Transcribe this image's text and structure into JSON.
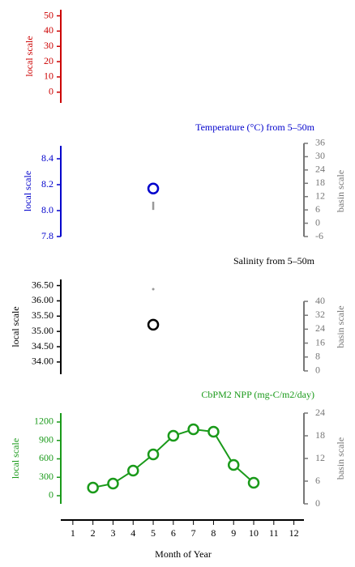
{
  "chart_data": [
    {
      "type": "line",
      "ylabel": "local scale",
      "color": "#cc0000",
      "ylim": [
        -7,
        54
      ],
      "yticks": [
        0,
        10,
        20,
        30,
        40,
        50
      ]
    },
    {
      "type": "line",
      "title": "Temperature (°C) from 5–50m",
      "ylabel": "local scale",
      "y2label": "basin scale",
      "color": "#0000cc",
      "ylim": [
        7.8,
        8.5
      ],
      "yticks": [
        7.8,
        {
          "value": 8,
          "label": "8.0"
        },
        8.2,
        8.4
      ],
      "y2lim": [
        -6,
        34.9
      ],
      "y2ticks": [
        -6,
        0,
        6,
        12,
        18,
        24,
        30,
        36
      ],
      "series": [
        {
          "color": "#0000cc",
          "x": [
            5
          ],
          "values": [
            8.17
          ]
        },
        {
          "color": "#999999",
          "axis": "y2",
          "x": [
            5
          ],
          "low": [
            6
          ],
          "high": [
            9.7
          ]
        }
      ]
    },
    {
      "type": "line",
      "title": "Salinity from 5–50m",
      "ylabel": "local scale",
      "y2label": "basin scale",
      "color": "#000000",
      "ylim": [
        33.6,
        36.7
      ],
      "yticks": [
        {
          "value": 34,
          "label": "34.00"
        },
        {
          "value": 34.5,
          "label": "34.50"
        },
        {
          "value": 35,
          "label": "35.00"
        },
        {
          "value": 35.5,
          "label": "35.50"
        },
        {
          "value": 36,
          "label": "36.00"
        },
        {
          "value": 36.5,
          "label": "36.50"
        }
      ],
      "y2lim": [
        -1.9,
        52.6
      ],
      "y2ticks": [
        0,
        8,
        16,
        24,
        32,
        40
      ],
      "series": [
        {
          "color": "#000000",
          "x": [
            5
          ],
          "values": [
            35.22
          ]
        },
        {
          "color": "#999999",
          "axis": "y2",
          "x": [
            5
          ],
          "values": [
            47
          ]
        }
      ]
    },
    {
      "type": "line",
      "title": "CbPM2 NPP (mg-C/m2/day)",
      "ylabel": "local scale",
      "y2label": "basin scale",
      "color": "#1a9a1a",
      "ylim": [
        -132,
        1345
      ],
      "yticks": [
        0,
        300,
        600,
        900,
        1200
      ],
      "y2lim": [
        0,
        24
      ],
      "y2ticks": [
        0,
        6,
        12,
        18,
        24
      ],
      "series": [
        {
          "color": "#1a9a1a",
          "x": [
            2,
            3,
            4,
            5,
            6,
            7,
            8,
            9,
            10
          ],
          "values": [
            132,
            198,
            409,
            672,
            976,
            1081,
            1042,
            501,
            211
          ]
        }
      ],
      "xlabel": "Month of Year",
      "xlim": [
        0.4,
        12.5
      ],
      "xticks": [
        1,
        2,
        3,
        4,
        5,
        6,
        7,
        8,
        9,
        10,
        11,
        12
      ]
    }
  ]
}
